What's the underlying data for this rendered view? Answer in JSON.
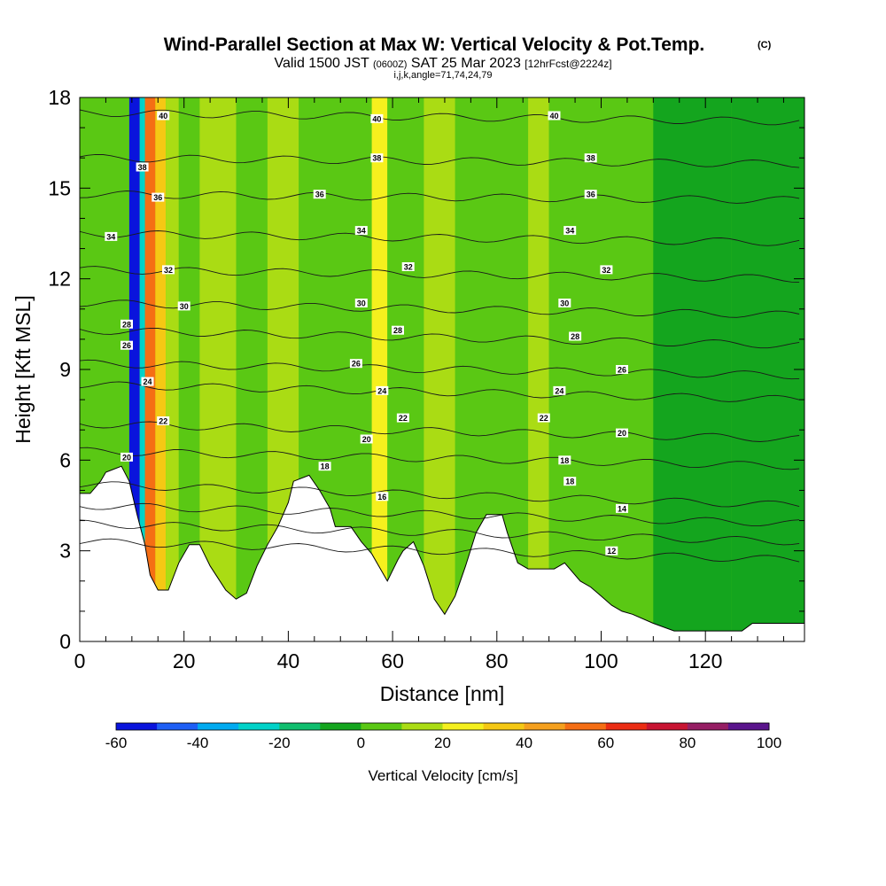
{
  "title": {
    "main": "Wind-Parallel Section at Max W: Vertical Velocity & Pot.Temp.",
    "copyright": "(C)",
    "line2_a": "Valid 1500 JST",
    "line2_b": "(0600Z)",
    "line2_c": "SAT 25 Mar 2023",
    "line2_d": "[12hrFcst@2224z]",
    "line3": "i,j,k,angle=71,74,24,79"
  },
  "colorbar": {
    "label": "Vertical Velocity [cm/s]",
    "tick_labels": [
      "-60",
      "-40",
      "-20",
      "0",
      "20",
      "40",
      "60",
      "80",
      "100"
    ],
    "colors": [
      "#0a14dc",
      "#1e5ff5",
      "#00aaf0",
      "#00d2c8",
      "#0fbe6e",
      "#14a51e",
      "#5ac814",
      "#aadc14",
      "#f5f01e",
      "#f5c814",
      "#f5a01e",
      "#f56e14",
      "#eb2d14",
      "#c81432",
      "#961e64",
      "#5a148c"
    ]
  },
  "chart_data": {
    "type": "heatmap",
    "title": "Wind-Parallel Section at Max W: Vertical Velocity & Pot.Temp.",
    "xlabel": "Distance [nm]",
    "ylabel": "Height [Kft MSL]",
    "xlim": [
      0,
      139
    ],
    "ylim": [
      0,
      18
    ],
    "x_ticks": [
      0,
      20,
      40,
      60,
      80,
      100,
      120
    ],
    "y_ticks": [
      0,
      3,
      6,
      9,
      12,
      15,
      18
    ],
    "colorbar_range": [
      -60,
      100
    ],
    "colorbar_step": 10,
    "shaded_field": "Vertical Velocity [cm/s]",
    "contour_field": "Potential Temperature",
    "bands": [
      {
        "x0": 0,
        "x1": 7,
        "value": 0
      },
      {
        "x0": 7,
        "x1": 9.5,
        "value": 0
      },
      {
        "x0": 9.5,
        "x1": 11.5,
        "value": -55
      },
      {
        "x0": 11.5,
        "x1": 12.5,
        "value": -25
      },
      {
        "x0": 12.5,
        "x1": 14.5,
        "value": 55
      },
      {
        "x0": 14.5,
        "x1": 16.5,
        "value": 35
      },
      {
        "x0": 16.5,
        "x1": 19,
        "value": 15
      },
      {
        "x0": 19,
        "x1": 23,
        "value": 5
      },
      {
        "x0": 23,
        "x1": 30,
        "value": 12
      },
      {
        "x0": 30,
        "x1": 36,
        "value": 5
      },
      {
        "x0": 36,
        "x1": 42,
        "value": 15
      },
      {
        "x0": 42,
        "x1": 48,
        "value": 5
      },
      {
        "x0": 48,
        "x1": 56,
        "value": 5
      },
      {
        "x0": 56,
        "x1": 59,
        "value": 22
      },
      {
        "x0": 59,
        "x1": 66,
        "value": 5
      },
      {
        "x0": 66,
        "x1": 72,
        "value": 12
      },
      {
        "x0": 72,
        "x1": 78,
        "value": 5
      },
      {
        "x0": 78,
        "x1": 86,
        "value": 5
      },
      {
        "x0": 86,
        "x1": 90,
        "value": 15
      },
      {
        "x0": 90,
        "x1": 100,
        "value": 5
      },
      {
        "x0": 100,
        "x1": 110,
        "value": 5
      },
      {
        "x0": 110,
        "x1": 125,
        "value": -5
      },
      {
        "x0": 125,
        "x1": 139,
        "value": -5
      }
    ],
    "terrain": [
      [
        0,
        4.9
      ],
      [
        2,
        4.9
      ],
      [
        4,
        5.3
      ],
      [
        5,
        5.6
      ],
      [
        8,
        5.8
      ],
      [
        9.5,
        5.3
      ],
      [
        11,
        4.2
      ],
      [
        12.5,
        3.2
      ],
      [
        13.5,
        2.2
      ],
      [
        15,
        1.7
      ],
      [
        17,
        1.7
      ],
      [
        19,
        2.6
      ],
      [
        21,
        3.2
      ],
      [
        23,
        3.2
      ],
      [
        25,
        2.5
      ],
      [
        28,
        1.7
      ],
      [
        30,
        1.4
      ],
      [
        32,
        1.6
      ],
      [
        34,
        2.5
      ],
      [
        36,
        3.2
      ],
      [
        38,
        3.8
      ],
      [
        40,
        4.6
      ],
      [
        41,
        5.3
      ],
      [
        44,
        5.5
      ],
      [
        46,
        5.0
      ],
      [
        48,
        4.4
      ],
      [
        49,
        3.8
      ],
      [
        52,
        3.8
      ],
      [
        54,
        3.3
      ],
      [
        56,
        2.9
      ],
      [
        58,
        2.3
      ],
      [
        59,
        2.0
      ],
      [
        61,
        2.7
      ],
      [
        62,
        3.0
      ],
      [
        64,
        3.3
      ],
      [
        66,
        2.5
      ],
      [
        68,
        1.4
      ],
      [
        70,
        0.9
      ],
      [
        72,
        1.5
      ],
      [
        74,
        2.5
      ],
      [
        76,
        3.6
      ],
      [
        78,
        4.2
      ],
      [
        81,
        4.2
      ],
      [
        82,
        3.6
      ],
      [
        84,
        2.6
      ],
      [
        86,
        2.4
      ],
      [
        91,
        2.4
      ],
      [
        93,
        2.6
      ],
      [
        96,
        2.0
      ],
      [
        98,
        1.8
      ],
      [
        100,
        1.5
      ],
      [
        102,
        1.2
      ],
      [
        104,
        1.0
      ],
      [
        106,
        0.9
      ],
      [
        110,
        0.6
      ],
      [
        114,
        0.35
      ],
      [
        120,
        0.35
      ],
      [
        127,
        0.35
      ],
      [
        129,
        0.6
      ],
      [
        139,
        0.6
      ]
    ],
    "contours": [
      {
        "label": "12",
        "y_left": 3.3,
        "y_right": 2.7
      },
      {
        "label": "14",
        "y_left": 3.9,
        "y_right": 3.3
      },
      {
        "label": "16",
        "y_left": 4.5,
        "y_right": 3.9
      },
      {
        "label": "18",
        "y_left": 5.2,
        "y_right": 4.5
      },
      {
        "label": "20",
        "y_left": 6.3,
        "y_right": 5.8
      },
      {
        "label": "22",
        "y_left": 7.2,
        "y_right": 6.7
      },
      {
        "label": "24",
        "y_left": 8.5,
        "y_right": 8.0
      },
      {
        "label": "26",
        "y_left": 9.2,
        "y_right": 8.8
      },
      {
        "label": "28",
        "y_left": 10.3,
        "y_right": 9.8
      },
      {
        "label": "30",
        "y_left": 11.2,
        "y_right": 10.8
      },
      {
        "label": "32",
        "y_left": 12.3,
        "y_right": 12.0
      },
      {
        "label": "34",
        "y_left": 13.5,
        "y_right": 13.2
      },
      {
        "label": "36",
        "y_left": 14.8,
        "y_right": 14.6
      },
      {
        "label": "38",
        "y_left": 16.0,
        "y_right": 15.8
      },
      {
        "label": "40",
        "y_left": 17.5,
        "y_right": 17.2
      }
    ],
    "contour_labels": [
      {
        "text": "40",
        "x": 16,
        "y": 17.4
      },
      {
        "text": "40",
        "x": 57,
        "y": 17.3
      },
      {
        "text": "40",
        "x": 91,
        "y": 17.4
      },
      {
        "text": "38",
        "x": 12,
        "y": 15.7
      },
      {
        "text": "38",
        "x": 57,
        "y": 16.0
      },
      {
        "text": "38",
        "x": 98,
        "y": 16.0
      },
      {
        "text": "36",
        "x": 15,
        "y": 14.7
      },
      {
        "text": "36",
        "x": 46,
        "y": 14.8
      },
      {
        "text": "36",
        "x": 98,
        "y": 14.8
      },
      {
        "text": "34",
        "x": 6,
        "y": 13.4
      },
      {
        "text": "34",
        "x": 54,
        "y": 13.6
      },
      {
        "text": "34",
        "x": 94,
        "y": 13.6
      },
      {
        "text": "32",
        "x": 17,
        "y": 12.3
      },
      {
        "text": "32",
        "x": 63,
        "y": 12.4
      },
      {
        "text": "32",
        "x": 101,
        "y": 12.3
      },
      {
        "text": "30",
        "x": 20,
        "y": 11.1
      },
      {
        "text": "30",
        "x": 54,
        "y": 11.2
      },
      {
        "text": "30",
        "x": 93,
        "y": 11.2
      },
      {
        "text": "28",
        "x": 9,
        "y": 10.5
      },
      {
        "text": "28",
        "x": 61,
        "y": 10.3
      },
      {
        "text": "28",
        "x": 95,
        "y": 10.1
      },
      {
        "text": "26",
        "x": 9,
        "y": 9.8
      },
      {
        "text": "26",
        "x": 53,
        "y": 9.2
      },
      {
        "text": "26",
        "x": 104,
        "y": 9.0
      },
      {
        "text": "24",
        "x": 13,
        "y": 8.6
      },
      {
        "text": "24",
        "x": 58,
        "y": 8.3
      },
      {
        "text": "24",
        "x": 92,
        "y": 8.3
      },
      {
        "text": "22",
        "x": 16,
        "y": 7.3
      },
      {
        "text": "22",
        "x": 62,
        "y": 7.4
      },
      {
        "text": "22",
        "x": 89,
        "y": 7.4
      },
      {
        "text": "20",
        "x": 55,
        "y": 6.7
      },
      {
        "text": "20",
        "x": 104,
        "y": 6.9
      },
      {
        "text": "20",
        "x": 9,
        "y": 6.1
      },
      {
        "text": "18",
        "x": 47,
        "y": 5.8
      },
      {
        "text": "18",
        "x": 93,
        "y": 6.0
      },
      {
        "text": "18",
        "x": 94,
        "y": 5.3
      },
      {
        "text": "16",
        "x": 58,
        "y": 4.8
      },
      {
        "text": "14",
        "x": 104,
        "y": 4.4
      },
      {
        "text": "12",
        "x": 102,
        "y": 3.0
      }
    ]
  }
}
